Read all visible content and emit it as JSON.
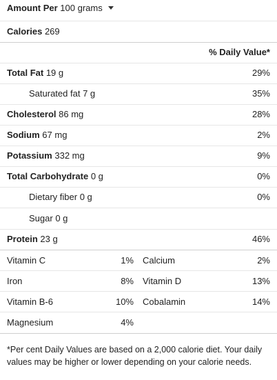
{
  "header": {
    "label": "Amount Per",
    "serving": "100 grams"
  },
  "calories": {
    "label": "Calories",
    "value": "269"
  },
  "daily_value_header": "% Daily Value*",
  "nutrients": [
    {
      "label": "Total Fat",
      "amount": "19 g",
      "pct": "29%"
    },
    {
      "label": "Saturated fat",
      "amount": "7 g",
      "pct": "35%"
    },
    {
      "label": "Cholesterol",
      "amount": "86 mg",
      "pct": "28%"
    },
    {
      "label": "Sodium",
      "amount": "67 mg",
      "pct": "2%"
    },
    {
      "label": "Potassium",
      "amount": "332 mg",
      "pct": "9%"
    },
    {
      "label": "Total Carbohydrate",
      "amount": "0 g",
      "pct": "0%"
    },
    {
      "label": "Dietary fiber",
      "amount": "0 g",
      "pct": "0%"
    },
    {
      "label": "Sugar",
      "amount": "0 g"
    },
    {
      "label": "Protein",
      "amount": "23 g",
      "pct": "46%"
    }
  ],
  "vitamins": [
    {
      "left_name": "Vitamin C",
      "left_pct": "1%",
      "right_name": "Calcium",
      "right_pct": "2%"
    },
    {
      "left_name": "Iron",
      "left_pct": "8%",
      "right_name": "Vitamin D",
      "right_pct": "13%"
    },
    {
      "left_name": "Vitamin B-6",
      "left_pct": "10%",
      "right_name": "Cobalamin",
      "right_pct": "14%"
    },
    {
      "left_name": "Magnesium",
      "left_pct": "4%"
    }
  ],
  "footnote": "*Per cent Daily Values are based on a 2,000 calorie diet. Your daily values may be higher or lower depending on your calorie needs."
}
